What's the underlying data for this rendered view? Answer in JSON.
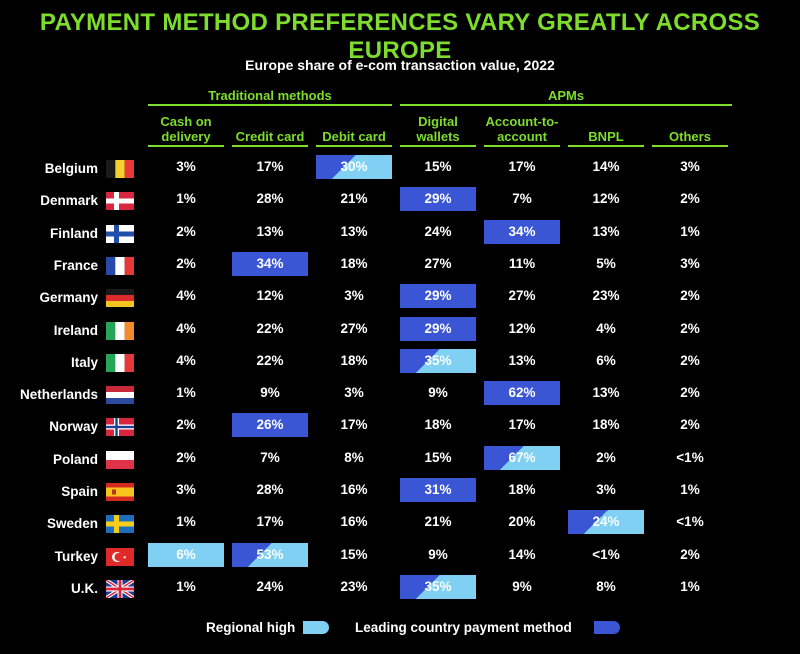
{
  "title": "PAYMENT METHOD PREFERENCES VARY GREATLY ACROSS EUROPE",
  "subtitle": "Europe share of e-com transaction value, 2022",
  "groups": {
    "traditional": "Traditional methods",
    "apms": "APMs"
  },
  "columns": [
    "Cash on delivery",
    "Credit card",
    "Debit card",
    "Digital wallets",
    "Account-to-account",
    "BNPL",
    "Others"
  ],
  "legend": {
    "regional_high": "Regional high",
    "leading": "Leading country payment method"
  },
  "colors": {
    "title_green": "#7ddc2c",
    "leading_blue": "#3a56d4",
    "regional_light_blue": "#7fd0f2",
    "background": "#000000"
  },
  "chart_data": {
    "type": "table",
    "columns": [
      "Cash on delivery",
      "Credit card",
      "Debit card",
      "Digital wallets",
      "Account-to-account",
      "BNPL",
      "Others"
    ],
    "rows": [
      {
        "country": "Belgium",
        "flag": "belgium-flag",
        "values": [
          "3%",
          "17%",
          "30%",
          "15%",
          "17%",
          "14%",
          "3%"
        ],
        "highlights": [
          "",
          "",
          "both",
          "",
          "",
          "",
          ""
        ]
      },
      {
        "country": "Denmark",
        "flag": "denmark-flag",
        "values": [
          "1%",
          "28%",
          "21%",
          "29%",
          "7%",
          "12%",
          "2%"
        ],
        "highlights": [
          "",
          "",
          "",
          "leading",
          "",
          "",
          ""
        ]
      },
      {
        "country": "Finland",
        "flag": "finland-flag",
        "values": [
          "2%",
          "13%",
          "13%",
          "24%",
          "34%",
          "13%",
          "1%"
        ],
        "highlights": [
          "",
          "",
          "",
          "",
          "leading",
          "",
          ""
        ]
      },
      {
        "country": "France",
        "flag": "france-flag",
        "values": [
          "2%",
          "34%",
          "18%",
          "27%",
          "11%",
          "5%",
          "3%"
        ],
        "highlights": [
          "",
          "leading",
          "",
          "",
          "",
          "",
          ""
        ]
      },
      {
        "country": "Germany",
        "flag": "germany-flag",
        "values": [
          "4%",
          "12%",
          "3%",
          "29%",
          "27%",
          "23%",
          "2%"
        ],
        "highlights": [
          "",
          "",
          "",
          "leading",
          "",
          "",
          ""
        ]
      },
      {
        "country": "Ireland",
        "flag": "ireland-flag",
        "values": [
          "4%",
          "22%",
          "27%",
          "29%",
          "12%",
          "4%",
          "2%"
        ],
        "highlights": [
          "",
          "",
          "",
          "leading",
          "",
          "",
          ""
        ]
      },
      {
        "country": "Italy",
        "flag": "italy-flag",
        "values": [
          "4%",
          "22%",
          "18%",
          "35%",
          "13%",
          "6%",
          "2%"
        ],
        "highlights": [
          "",
          "",
          "",
          "both",
          "",
          "",
          ""
        ]
      },
      {
        "country": "Netherlands",
        "flag": "netherlands-flag",
        "values": [
          "1%",
          "9%",
          "3%",
          "9%",
          "62%",
          "13%",
          "2%"
        ],
        "highlights": [
          "",
          "",
          "",
          "",
          "leading",
          "",
          ""
        ]
      },
      {
        "country": "Norway",
        "flag": "norway-flag",
        "values": [
          "2%",
          "26%",
          "17%",
          "18%",
          "17%",
          "18%",
          "2%"
        ],
        "highlights": [
          "",
          "leading",
          "",
          "",
          "",
          "",
          ""
        ]
      },
      {
        "country": "Poland",
        "flag": "poland-flag",
        "values": [
          "2%",
          "7%",
          "8%",
          "15%",
          "67%",
          "2%",
          "<1%"
        ],
        "highlights": [
          "",
          "",
          "",
          "",
          "both",
          "",
          ""
        ]
      },
      {
        "country": "Spain",
        "flag": "spain-flag",
        "values": [
          "3%",
          "28%",
          "16%",
          "31%",
          "18%",
          "3%",
          "1%"
        ],
        "highlights": [
          "",
          "",
          "",
          "leading",
          "",
          "",
          ""
        ]
      },
      {
        "country": "Sweden",
        "flag": "sweden-flag",
        "values": [
          "1%",
          "17%",
          "16%",
          "21%",
          "20%",
          "24%",
          "<1%"
        ],
        "highlights": [
          "",
          "",
          "",
          "",
          "",
          "both",
          ""
        ]
      },
      {
        "country": "Turkey",
        "flag": "turkey-flag",
        "values": [
          "6%",
          "53%",
          "15%",
          "9%",
          "14%",
          "<1%",
          "2%"
        ],
        "highlights": [
          "regional",
          "both",
          "",
          "",
          "",
          "",
          ""
        ]
      },
      {
        "country": "U.K.",
        "flag": "uk-flag",
        "values": [
          "1%",
          "24%",
          "23%",
          "35%",
          "9%",
          "8%",
          "1%"
        ],
        "highlights": [
          "",
          "",
          "",
          "both",
          "",
          "",
          ""
        ]
      }
    ]
  }
}
